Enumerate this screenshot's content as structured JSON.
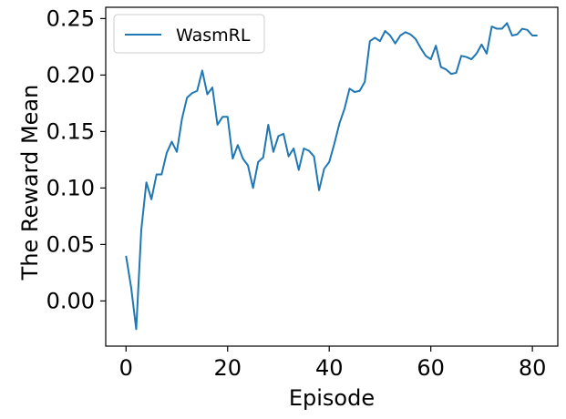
{
  "chart_data": {
    "type": "line",
    "xlabel": "Episode",
    "ylabel": "The Reward Mean",
    "xlim": [
      -4,
      85
    ],
    "ylim": [
      -0.04,
      0.26
    ],
    "xticks": [
      0,
      20,
      40,
      60,
      80
    ],
    "yticks": [
      0.0,
      0.05,
      0.1,
      0.15,
      0.2,
      0.25
    ],
    "grid": false,
    "legend": {
      "position": "top-left"
    },
    "series": [
      {
        "name": "WasmRL",
        "color": "#1f77b4",
        "x": [
          0,
          1,
          2,
          3,
          4,
          5,
          6,
          7,
          8,
          9,
          10,
          11,
          12,
          13,
          14,
          15,
          16,
          17,
          18,
          19,
          20,
          21,
          22,
          23,
          24,
          25,
          26,
          27,
          28,
          29,
          30,
          31,
          32,
          33,
          34,
          35,
          36,
          37,
          38,
          39,
          40,
          41,
          42,
          43,
          44,
          45,
          46,
          47,
          48,
          49,
          50,
          51,
          52,
          53,
          54,
          55,
          56,
          57,
          58,
          59,
          60,
          61,
          62,
          63,
          64,
          65,
          66,
          67,
          68,
          69,
          70,
          71,
          72,
          73,
          74,
          75,
          76,
          77,
          78,
          79,
          80,
          81
        ],
        "y": [
          0.04,
          0.012,
          -0.025,
          0.063,
          0.105,
          0.09,
          0.112,
          0.112,
          0.131,
          0.141,
          0.132,
          0.161,
          0.18,
          0.184,
          0.186,
          0.204,
          0.183,
          0.189,
          0.156,
          0.163,
          0.163,
          0.126,
          0.138,
          0.126,
          0.12,
          0.1,
          0.123,
          0.127,
          0.156,
          0.132,
          0.146,
          0.148,
          0.128,
          0.135,
          0.116,
          0.135,
          0.133,
          0.128,
          0.098,
          0.117,
          0.123,
          0.139,
          0.157,
          0.17,
          0.188,
          0.185,
          0.186,
          0.194,
          0.23,
          0.233,
          0.23,
          0.239,
          0.235,
          0.228,
          0.235,
          0.238,
          0.236,
          0.232,
          0.224,
          0.217,
          0.214,
          0.226,
          0.207,
          0.205,
          0.201,
          0.202,
          0.217,
          0.216,
          0.214,
          0.219,
          0.227,
          0.219,
          0.243,
          0.241,
          0.241,
          0.246,
          0.235,
          0.236,
          0.241,
          0.24,
          0.235,
          0.235
        ]
      }
    ]
  }
}
